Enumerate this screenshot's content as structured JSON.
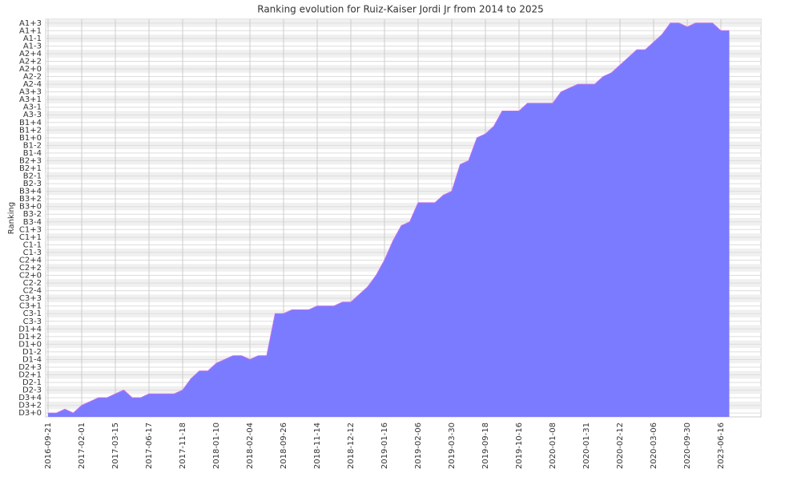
{
  "chart_data": {
    "type": "area",
    "title": "Ranking evolution for Ruiz-Kaiser Jordi Jr from 2014 to 2025",
    "y_label": "Ranking",
    "categories": [
      "2016-09-21",
      null,
      null,
      null,
      "2017-02-01",
      null,
      null,
      null,
      "2017-03-15",
      null,
      null,
      null,
      "2017-06-17",
      null,
      null,
      null,
      "2017-11-18",
      null,
      null,
      null,
      "2018-01-10",
      null,
      null,
      null,
      "2018-02-04",
      null,
      null,
      null,
      "2018-09-26",
      null,
      null,
      null,
      "2018-11-14",
      null,
      null,
      null,
      "2018-12-12",
      null,
      null,
      null,
      "2019-01-16",
      null,
      null,
      null,
      "2019-02-06",
      null,
      null,
      null,
      "2019-03-30",
      null,
      null,
      null,
      "2019-09-18",
      null,
      null,
      null,
      "2019-10-16",
      null,
      null,
      null,
      "2020-01-08",
      null,
      null,
      null,
      "2020-01-31",
      null,
      null,
      null,
      "2020-02-12",
      null,
      null,
      null,
      "2020-03-06",
      null,
      null,
      null,
      "2020-09-30",
      null,
      null,
      null,
      "2023-06-16",
      null
    ],
    "values": [
      0,
      0,
      0.5,
      0,
      1,
      1.5,
      2,
      2,
      2.5,
      3,
      2,
      2,
      2.5,
      2.5,
      2.5,
      2.5,
      3,
      4.5,
      5.5,
      5.5,
      6.5,
      7,
      7.5,
      7.5,
      7,
      7.5,
      7.5,
      13,
      13,
      13.5,
      13.5,
      13.5,
      14,
      14,
      14,
      14.5,
      14.5,
      15.5,
      16.5,
      18,
      20,
      22.5,
      24.5,
      25,
      27.5,
      27.5,
      27.5,
      28.5,
      29,
      32.5,
      33,
      36,
      36.5,
      37.5,
      39.5,
      39.5,
      39.5,
      40.5,
      40.5,
      40.5,
      40.5,
      42,
      42.5,
      43,
      43,
      43,
      44,
      44.5,
      45.5,
      46.5,
      47.5,
      47.5,
      48.5,
      49.5,
      51,
      51,
      50.5,
      51,
      51,
      51,
      50,
      50
    ],
    "color": "#7b7bff",
    "line_color": "#c070f0",
    "ylim": [
      -0.5,
      51.5
    ],
    "yticks": [
      {
        "value": 0,
        "label": "D3+0"
      },
      {
        "value": 1,
        "label": "D3+2"
      },
      {
        "value": 2,
        "label": "D3+4"
      },
      {
        "value": 3,
        "label": "D2-3"
      },
      {
        "value": 4,
        "label": "D2-1"
      },
      {
        "value": 5,
        "label": "D2+1"
      },
      {
        "value": 6,
        "label": "D2+3"
      },
      {
        "value": 7,
        "label": "D1-4"
      },
      {
        "value": 8,
        "label": "D1-2"
      },
      {
        "value": 9,
        "label": "D1+0"
      },
      {
        "value": 10,
        "label": "D1+2"
      },
      {
        "value": 11,
        "label": "D1+4"
      },
      {
        "value": 12,
        "label": "C3-3"
      },
      {
        "value": 13,
        "label": "C3-1"
      },
      {
        "value": 14,
        "label": "C3+1"
      },
      {
        "value": 15,
        "label": "C3+3"
      },
      {
        "value": 16,
        "label": "C2-4"
      },
      {
        "value": 17,
        "label": "C2-2"
      },
      {
        "value": 18,
        "label": "C2+0"
      },
      {
        "value": 19,
        "label": "C2+2"
      },
      {
        "value": 20,
        "label": "C2+4"
      },
      {
        "value": 21,
        "label": "C1-3"
      },
      {
        "value": 22,
        "label": "C1-1"
      },
      {
        "value": 23,
        "label": "C1+1"
      },
      {
        "value": 24,
        "label": "C1+3"
      },
      {
        "value": 25,
        "label": "B3-4"
      },
      {
        "value": 26,
        "label": "B3-2"
      },
      {
        "value": 27,
        "label": "B3+0"
      },
      {
        "value": 28,
        "label": "B3+2"
      },
      {
        "value": 29,
        "label": "B3+4"
      },
      {
        "value": 30,
        "label": "B2-3"
      },
      {
        "value": 31,
        "label": "B2-1"
      },
      {
        "value": 32,
        "label": "B2+1"
      },
      {
        "value": 33,
        "label": "B2+3"
      },
      {
        "value": 34,
        "label": "B1-4"
      },
      {
        "value": 35,
        "label": "B1-2"
      },
      {
        "value": 36,
        "label": "B1+0"
      },
      {
        "value": 37,
        "label": "B1+2"
      },
      {
        "value": 38,
        "label": "B1+4"
      },
      {
        "value": 39,
        "label": "A3-3"
      },
      {
        "value": 40,
        "label": "A3-1"
      },
      {
        "value": 41,
        "label": "A3+1"
      },
      {
        "value": 42,
        "label": "A3+3"
      },
      {
        "value": 43,
        "label": "A2-4"
      },
      {
        "value": 44,
        "label": "A2-2"
      },
      {
        "value": 45,
        "label": "A2+0"
      },
      {
        "value": 46,
        "label": "A2+2"
      },
      {
        "value": 47,
        "label": "A2+4"
      },
      {
        "value": 48,
        "label": "A1-3"
      },
      {
        "value": 49,
        "label": "A1-1"
      },
      {
        "value": 50,
        "label": "A1+1"
      },
      {
        "value": 51,
        "label": "A1+3"
      }
    ],
    "grid": true
  }
}
